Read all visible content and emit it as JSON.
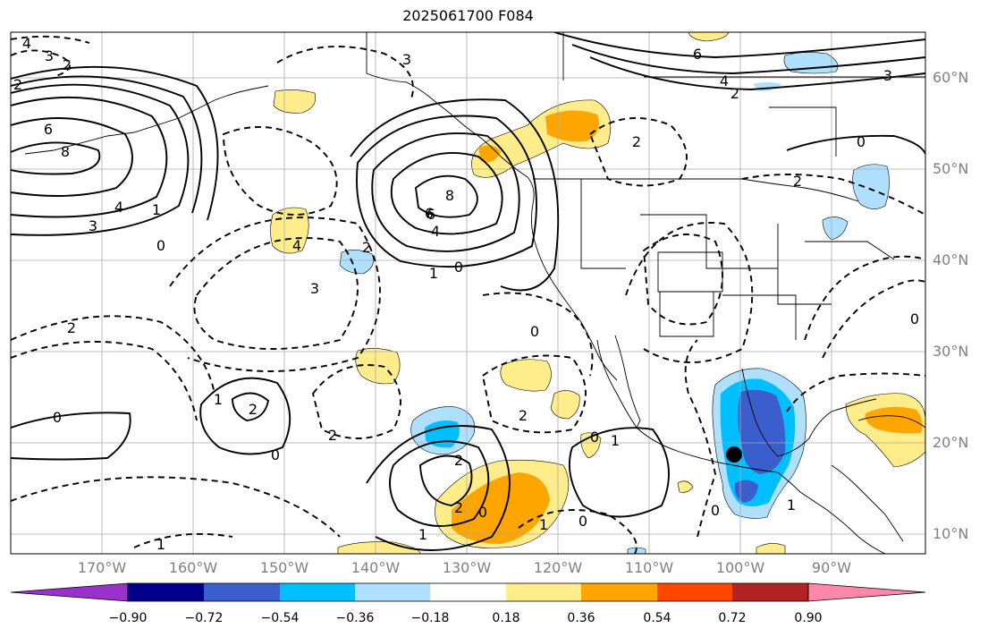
{
  "title": "2025061700 F084",
  "lon_ticks": [
    "170°W",
    "160°W",
    "150°W",
    "140°W",
    "130°W",
    "120°W",
    "110°W",
    "100°W",
    "90°W"
  ],
  "lat_ticks": [
    "60°N",
    "50°N",
    "40°N",
    "30°N",
    "20°N",
    "10°N"
  ],
  "colorbar": {
    "labels": [
      "−0.90",
      "−0.72",
      "−0.54",
      "−0.36",
      "−0.18",
      "0.18",
      "0.36",
      "0.54",
      "0.72",
      "0.90"
    ],
    "colors": [
      "#9932cc",
      "#00008b",
      "#3a5fcd",
      "#00bfff",
      "#b0e0ff",
      "#ffffff",
      "#ffec8b",
      "#ffa500",
      "#ff4500",
      "#b22222",
      "#ff88aa"
    ]
  },
  "contour_labels": [
    "4",
    "3",
    "2",
    "2",
    "6",
    "8",
    "4",
    "3",
    "0",
    "1",
    "2",
    "3",
    "4",
    "6",
    "8",
    "6",
    "4",
    "2",
    "0",
    "1",
    "2",
    "3",
    "0",
    "6",
    "4",
    "2",
    "3",
    "2",
    "0",
    "2",
    "2",
    "1",
    "2",
    "1",
    "0",
    "1",
    "2",
    "1",
    "0",
    "1",
    "2",
    "1",
    "0",
    "0",
    "0",
    "0",
    "0"
  ]
}
